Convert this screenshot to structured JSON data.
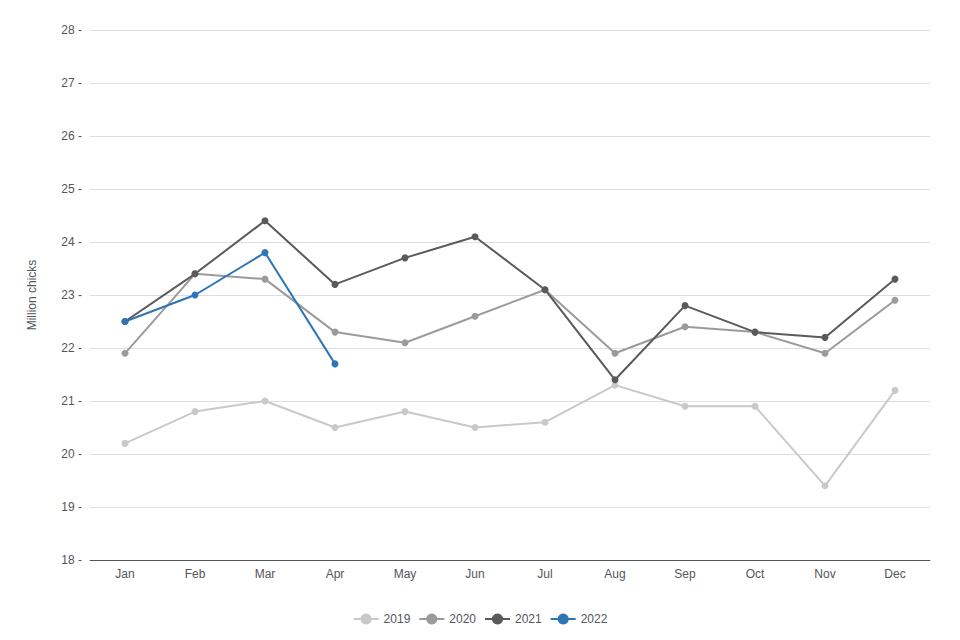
{
  "chart_data": {
    "type": "line",
    "ylabel": "Million chicks",
    "categories": [
      "Jan",
      "Feb",
      "Mar",
      "Apr",
      "May",
      "Jun",
      "Jul",
      "Aug",
      "Sep",
      "Oct",
      "Nov",
      "Dec"
    ],
    "series": [
      {
        "name": "2019",
        "color": "#c9c9c9",
        "marker": "circle",
        "values": [
          20.2,
          20.8,
          21.0,
          20.5,
          20.8,
          20.5,
          20.6,
          21.3,
          20.9,
          20.9,
          19.4,
          21.2
        ]
      },
      {
        "name": "2020",
        "color": "#9b9b9b",
        "marker": "circle",
        "values": [
          21.9,
          23.4,
          23.3,
          22.3,
          22.1,
          22.6,
          23.1,
          21.9,
          22.4,
          22.3,
          21.9,
          22.9
        ]
      },
      {
        "name": "2021",
        "color": "#5a5a5a",
        "marker": "circle",
        "values": [
          22.5,
          23.4,
          24.4,
          23.2,
          23.7,
          24.1,
          23.1,
          21.4,
          22.8,
          22.3,
          22.2,
          23.3
        ]
      },
      {
        "name": "2022",
        "color": "#2e75b6",
        "marker": "circle",
        "values": [
          22.5,
          23.0,
          23.8,
          21.7,
          null,
          null,
          null,
          null,
          null,
          null,
          null,
          null
        ]
      }
    ],
    "ylim": [
      18,
      28
    ],
    "yticks": [
      {
        "value": 18,
        "label": "18 -"
      },
      {
        "value": 19,
        "label": "19 -"
      },
      {
        "value": 20,
        "label": "20 -"
      },
      {
        "value": 21,
        "label": "21 -"
      },
      {
        "value": 22,
        "label": "22 -"
      },
      {
        "value": 23,
        "label": "23 -"
      },
      {
        "value": 24,
        "label": "24 -"
      },
      {
        "value": 25,
        "label": "25 -"
      },
      {
        "value": 26,
        "label": "26 -"
      },
      {
        "value": 27,
        "label": "27 -"
      },
      {
        "value": 28,
        "label": "28 -"
      }
    ],
    "grid": true,
    "legend": "bottom"
  }
}
